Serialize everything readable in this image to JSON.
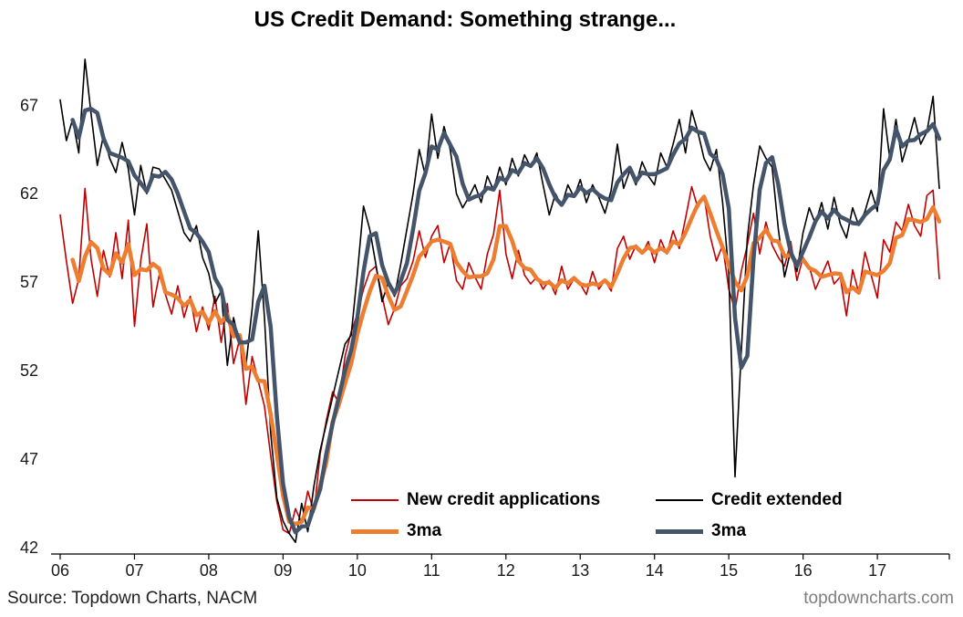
{
  "chart_data": {
    "type": "line",
    "title": "US Credit Demand: Something strange...",
    "x_axis": {
      "frequency": "monthly",
      "start": "2006-01",
      "tick_labels": [
        "06",
        "07",
        "08",
        "09",
        "10",
        "11",
        "12",
        "13",
        "14",
        "15",
        "16",
        "17"
      ],
      "tick_month_indices": [
        0,
        12,
        24,
        36,
        48,
        60,
        72,
        84,
        96,
        108,
        120,
        132
      ]
    },
    "y_axis": {
      "ticks": [
        67,
        62,
        57,
        52,
        47,
        42
      ],
      "ylim": [
        42,
        69.8
      ]
    },
    "grid": false,
    "legend_position": "inside-bottom",
    "series": [
      {
        "id": "new-credit-applications",
        "name": "New credit applications",
        "legend_label": "New credit applications",
        "type": "raw",
        "color": "#C00000",
        "stroke_width": 1.6,
        "values": [
          60.8,
          58.2,
          55.8,
          57.2,
          62.3,
          58.3,
          56.2,
          58.8,
          57.3,
          59.8,
          57.2,
          60.5,
          54.5,
          58.2,
          60.3,
          55.6,
          57.4,
          56.3,
          55.2,
          56.8,
          55.0,
          56.2,
          54.2,
          55.6,
          54.3,
          56.2,
          53.6,
          55.8,
          52.4,
          53.8,
          50.1,
          52.8,
          51.4,
          50.0,
          47.2,
          44.6,
          43.0,
          42.8,
          44.2,
          43.4,
          45.2,
          44.0,
          47.3,
          49.2,
          50.8,
          50.2,
          52.8,
          54.2,
          55.2,
          56.6,
          57.6,
          57.9,
          56.2,
          54.6,
          55.5,
          56.8,
          57.2,
          58.2,
          59.9,
          58.4,
          59.6,
          60.2,
          58.1,
          59.2,
          57.1,
          56.6,
          58.1,
          57.3,
          56.6,
          58.6,
          59.7,
          62.2,
          58.6,
          57.2,
          58.8,
          57.4,
          56.9,
          57.3,
          56.6,
          57.1,
          56.3,
          57.9,
          56.6,
          57.2,
          56.9,
          56.3,
          57.6,
          56.6,
          57.1,
          56.5,
          58.9,
          59.6,
          58.3,
          59.1,
          58.6,
          59.3,
          58.1,
          59.4,
          58.6,
          59.9,
          58.9,
          60.6,
          62.4,
          61.2,
          61.9,
          59.6,
          58.2,
          59.1,
          56.6,
          55.4,
          57.6,
          59.1,
          60.9,
          58.6,
          60.4,
          59.1,
          58.4,
          57.9,
          59.3,
          57.1,
          58.4,
          57.9,
          56.6,
          57.4,
          58.2,
          56.9,
          57.3,
          55.1,
          57.7,
          56.4,
          58.7,
          57.4,
          56.1,
          59.4,
          58.7,
          60.4,
          59.9,
          61.4,
          60.2,
          59.6,
          61.9,
          62.2,
          57.2
        ]
      },
      {
        "id": "new-credit-applications-3ma",
        "name": "3ma",
        "legend_label": "3ma",
        "type": "moving_average",
        "window": 3,
        "source_id": "new-credit-applications",
        "color": "#ED7D31",
        "stroke_width": 4.5
      },
      {
        "id": "credit-extended",
        "name": "Credit extended",
        "legend_label": "Credit extended",
        "type": "raw",
        "color": "#000000",
        "stroke_width": 1.6,
        "values": [
          67.3,
          65.0,
          66.2,
          64.3,
          69.6,
          66.5,
          63.6,
          65.3,
          64.0,
          63.2,
          64.9,
          63.4,
          60.8,
          63.6,
          62.0,
          63.5,
          63.4,
          62.8,
          62.2,
          61.0,
          59.8,
          59.3,
          60.2,
          58.4,
          57.5,
          55.8,
          56.5,
          52.3,
          55.0,
          53.5,
          52.3,
          55.5,
          59.9,
          55.0,
          48.5,
          44.8,
          43.5,
          42.8,
          42.3,
          44.5,
          42.9,
          45.5,
          47.5,
          49.0,
          50.5,
          52.0,
          53.5,
          54.0,
          57.5,
          61.3,
          60.0,
          58.0,
          55.9,
          57.0,
          56.2,
          58.0,
          60.0,
          62.0,
          64.5,
          63.0,
          66.5,
          64.0,
          65.8,
          64.5,
          62.0,
          61.2,
          61.8,
          62.5,
          61.5,
          63.0,
          62.2,
          63.5,
          62.5,
          64.0,
          63.0,
          64.2,
          63.5,
          64.3,
          62.5,
          60.8,
          62.0,
          61.3,
          62.5,
          61.8,
          62.8,
          61.5,
          62.5,
          61.8,
          60.9,
          62.2,
          64.8,
          62.3,
          63.3,
          62.5,
          63.8,
          63.0,
          62.5,
          64.3,
          63.5,
          64.8,
          66.2,
          64.3,
          66.7,
          65.5,
          64.0,
          63.3,
          64.5,
          61.5,
          57.5,
          46.0,
          53.0,
          59.5,
          62.5,
          64.7,
          64.0,
          63.5,
          60.0,
          57.3,
          58.8,
          57.6,
          59.8,
          61.2,
          60.3,
          61.5,
          60.0,
          61.8,
          60.3,
          59.5,
          61.2,
          60.2,
          61.0,
          62.2,
          61.0,
          66.8,
          64.0,
          66.2,
          63.8,
          65.0,
          66.3,
          64.8,
          65.5,
          67.5,
          62.3
        ]
      },
      {
        "id": "credit-extended-3ma",
        "name": "3ma",
        "legend_label": "3ma",
        "type": "moving_average",
        "window": 3,
        "source_id": "credit-extended",
        "color": "#44546A",
        "stroke_width": 4.5
      }
    ]
  },
  "footer": {
    "source": "Source: Topdown Charts, NACM",
    "watermark": "topdowncharts.com"
  }
}
